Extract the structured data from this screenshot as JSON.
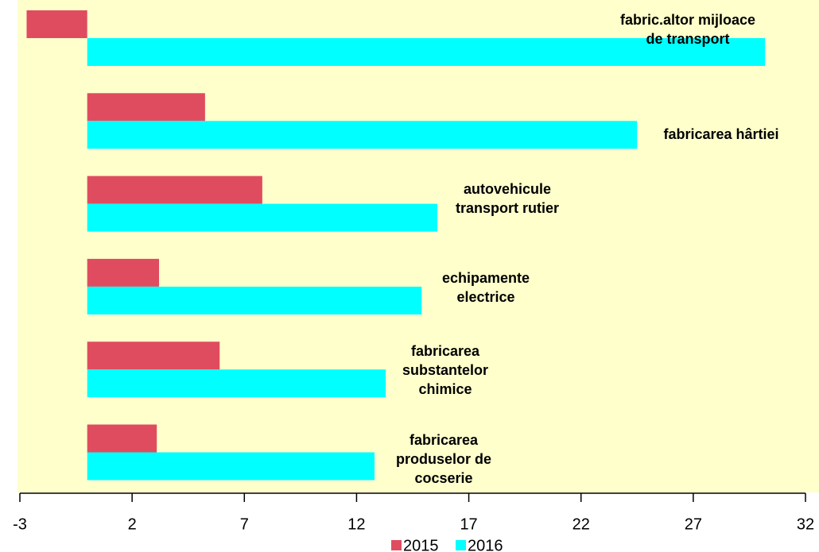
{
  "chart_data": {
    "type": "hbar",
    "categories": [
      "fabric.altor mijloace\nde transport",
      "fabricarea hârtiei",
      "autovehicule\ntransport rutier",
      "echipamente\nelectrice",
      "fabricarea\nsubstantelor\nchimice",
      "fabricarea\nproduselor de\ncocserie"
    ],
    "series": [
      {
        "name": "2015",
        "color": "#e04c5f",
        "values": [
          -2.7,
          5.25,
          7.8,
          3.2,
          5.9,
          3.1
        ]
      },
      {
        "name": "2016",
        "color": "#00ffff",
        "values": [
          30.2,
          24.5,
          15.6,
          14.9,
          13.3,
          12.8
        ]
      }
    ],
    "xlim": [
      -3,
      32
    ],
    "xticks": [
      -3,
      2,
      7,
      12,
      17,
      22,
      27,
      32
    ],
    "background": "#ffffcc"
  }
}
